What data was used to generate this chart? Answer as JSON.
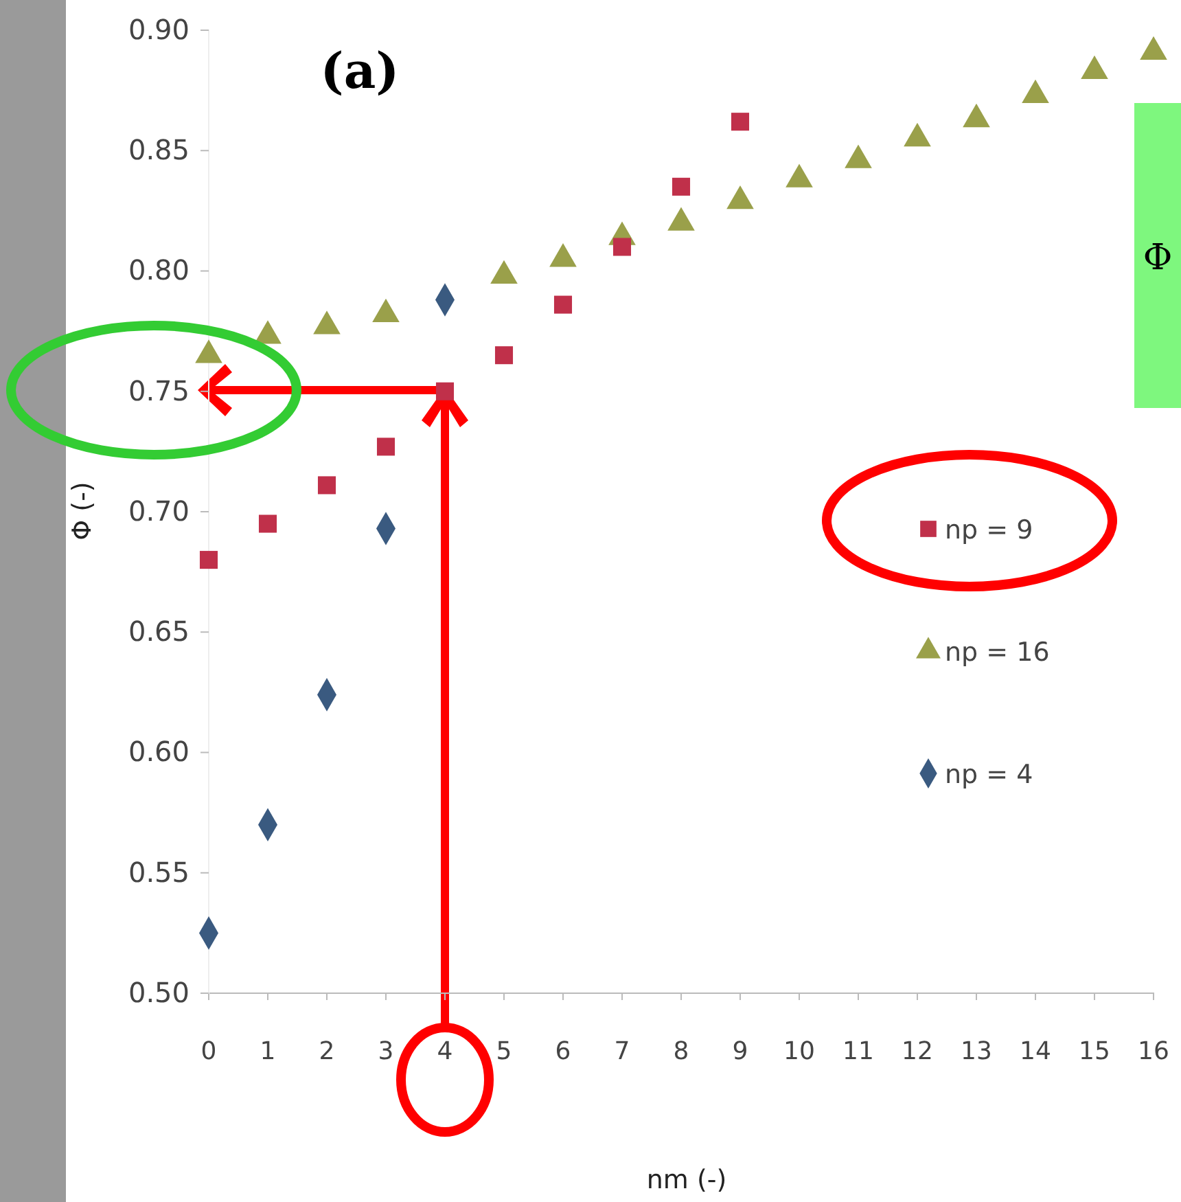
{
  "chart_data": {
    "type": "scatter",
    "xlabel": "nm (-)",
    "ylabel": "Φ (-)",
    "x": [
      0,
      1,
      2,
      3,
      4,
      5,
      6,
      7,
      8,
      9,
      10,
      11,
      12,
      13,
      14,
      15,
      16
    ],
    "series": [
      {
        "name": "np = 9",
        "color": "#c0304a",
        "marker": "square",
        "values": [
          0.68,
          0.695,
          0.711,
          0.727,
          0.75,
          0.765,
          0.786,
          0.81,
          0.835,
          0.862,
          null,
          null,
          null,
          null,
          null,
          null,
          null
        ]
      },
      {
        "name": "np = 16",
        "color": "#9aa04a",
        "marker": "triangle",
        "values": [
          0.765,
          0.773,
          0.777,
          0.782,
          null,
          0.798,
          0.805,
          0.814,
          0.82,
          0.829,
          0.838,
          0.846,
          0.855,
          0.863,
          0.873,
          0.883,
          0.891
        ]
      },
      {
        "name": "np = 4",
        "color": "#3a5a80",
        "marker": "diamond",
        "values": [
          0.525,
          0.57,
          0.624,
          0.693,
          0.788,
          null,
          null,
          null,
          null,
          null,
          null,
          null,
          null,
          null,
          null,
          null,
          null
        ]
      }
    ],
    "xlim": [
      0,
      16
    ],
    "xticks": [
      0,
      1,
      2,
      3,
      4,
      5,
      6,
      7,
      8,
      9,
      10,
      11,
      12,
      13,
      14,
      15,
      16
    ],
    "ylim": [
      0.5,
      0.9
    ],
    "yticks": [
      {
        "value": 0.5,
        "label": "0.50"
      },
      {
        "value": 0.55,
        "label": "0.55"
      },
      {
        "value": 0.6,
        "label": "0.60"
      },
      {
        "value": 0.65,
        "label": "0.65"
      },
      {
        "value": 0.7,
        "label": "0.70"
      },
      {
        "value": 0.75,
        "label": "0.75"
      },
      {
        "value": 0.8,
        "label": "0.80"
      },
      {
        "value": 0.85,
        "label": "0.85"
      },
      {
        "value": 0.9,
        "label": "0.90"
      }
    ],
    "grid": false,
    "legend": "right",
    "annotations": [
      "(a)",
      "Φ"
    ]
  }
}
